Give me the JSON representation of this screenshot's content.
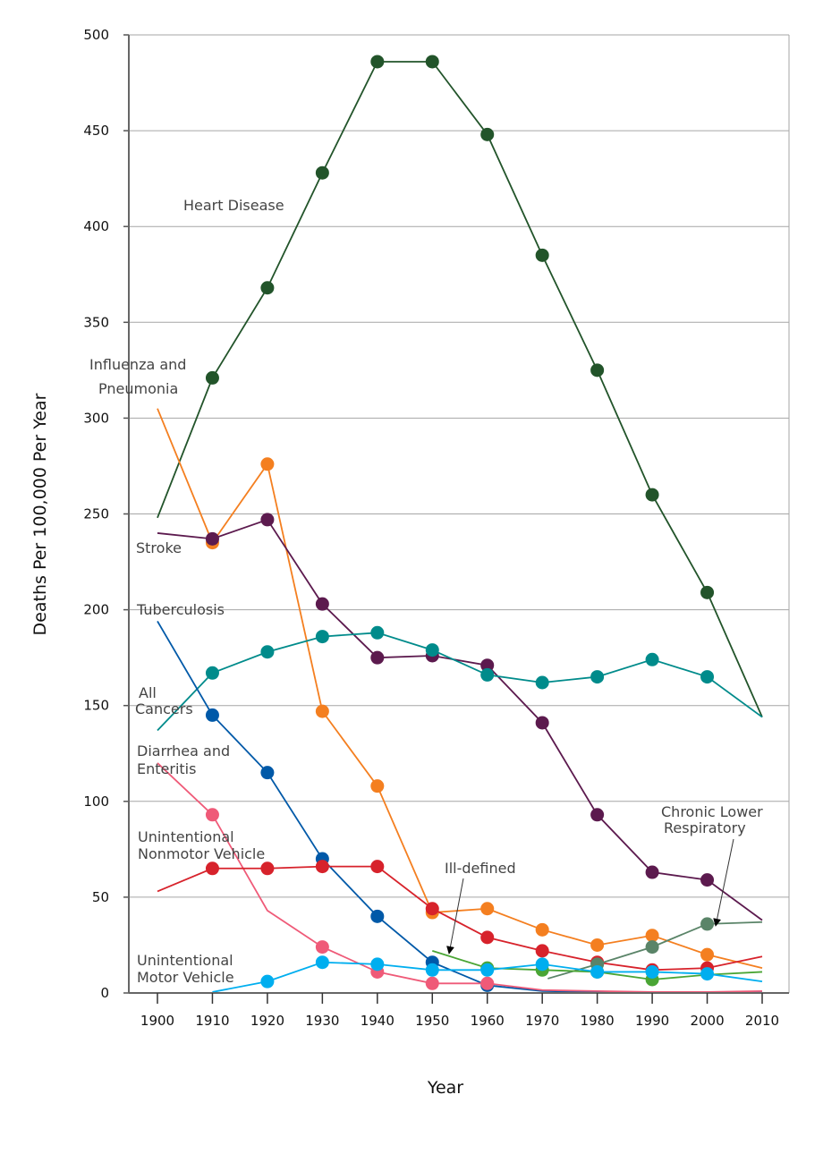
{
  "chart_data": {
    "type": "line",
    "title": "",
    "xlabel": "Year",
    "ylabel": "Deaths Per 100,000 Per Year",
    "xlim": [
      1900,
      2010
    ],
    "ylim": [
      0,
      500
    ],
    "x_ticks": [
      1900,
      1910,
      1920,
      1930,
      1940,
      1950,
      1960,
      1970,
      1980,
      1990,
      2000,
      2010
    ],
    "y_ticks": [
      0,
      50,
      100,
      150,
      200,
      250,
      300,
      350,
      400,
      450,
      500
    ],
    "grid": "horizontal",
    "legend": "none (inline labels)",
    "series": [
      {
        "name": "Heart Disease",
        "color": "#22542a",
        "x": [
          1900,
          1910,
          1920,
          1930,
          1940,
          1950,
          1960,
          1970,
          1980,
          1990,
          2000,
          2010
        ],
        "values": [
          248,
          321,
          368,
          428,
          486,
          486,
          448,
          385,
          325,
          260,
          209,
          144
        ],
        "markers": [
          false,
          true,
          true,
          true,
          true,
          true,
          true,
          true,
          true,
          true,
          true,
          false
        ]
      },
      {
        "name": "Influenza and Pneumonia",
        "color": "#f47f20",
        "x": [
          1900,
          1910,
          1920,
          1930,
          1940,
          1950,
          1960,
          1970,
          1980,
          1990,
          2000,
          2010
        ],
        "values": [
          305,
          235,
          276,
          147,
          108,
          42,
          44,
          33,
          25,
          30,
          20,
          13
        ],
        "markers": [
          false,
          true,
          true,
          true,
          true,
          true,
          true,
          true,
          true,
          true,
          true,
          false
        ]
      },
      {
        "name": "Stroke",
        "color": "#5c1a4e",
        "x": [
          1900,
          1910,
          1920,
          1930,
          1940,
          1950,
          1960,
          1970,
          1980,
          1990,
          2000,
          2010
        ],
        "values": [
          240,
          237,
          247,
          203,
          175,
          176,
          171,
          141,
          93,
          63,
          59,
          38
        ],
        "markers": [
          false,
          true,
          true,
          true,
          true,
          true,
          true,
          true,
          true,
          true,
          true,
          false
        ]
      },
      {
        "name": "All Cancers",
        "color": "#008b8b",
        "x": [
          1900,
          1910,
          1920,
          1930,
          1940,
          1950,
          1960,
          1970,
          1980,
          1990,
          2000,
          2010
        ],
        "values": [
          137,
          167,
          178,
          186,
          188,
          179,
          166,
          162,
          165,
          174,
          165,
          144
        ],
        "markers": [
          false,
          true,
          true,
          true,
          true,
          true,
          true,
          true,
          true,
          true,
          true,
          false
        ]
      },
      {
        "name": "Tuberculosis",
        "color": "#0059a8",
        "x": [
          1900,
          1910,
          1920,
          1930,
          1940,
          1950,
          1960,
          1970,
          1980,
          1990,
          2000,
          2010
        ],
        "values": [
          194,
          145,
          115,
          70,
          40,
          16,
          4,
          1,
          0.5,
          0.3,
          0.2,
          0.2
        ],
        "markers": [
          false,
          true,
          true,
          true,
          true,
          true,
          true,
          false,
          false,
          false,
          false,
          false
        ]
      },
      {
        "name": "Diarrhea and Enteritis",
        "color": "#ef5a78",
        "x": [
          1900,
          1910,
          1920,
          1930,
          1940,
          1950,
          1960,
          1970,
          1980,
          1990,
          2000,
          2010
        ],
        "values": [
          120,
          93,
          43,
          24,
          11,
          5,
          5,
          1.5,
          1,
          0.5,
          0.5,
          1
        ],
        "markers": [
          false,
          true,
          false,
          true,
          true,
          true,
          true,
          false,
          false,
          false,
          false,
          false
        ]
      },
      {
        "name": "Unintentional Nonmotor Vehicle",
        "color": "#d7222b",
        "x": [
          1900,
          1910,
          1920,
          1930,
          1940,
          1950,
          1960,
          1970,
          1980,
          1990,
          2000,
          2010
        ],
        "values": [
          53,
          65,
          65,
          66,
          66,
          44,
          29,
          22,
          16,
          12,
          13,
          19
        ],
        "markers": [
          false,
          true,
          true,
          true,
          true,
          true,
          true,
          true,
          true,
          true,
          true,
          false
        ]
      },
      {
        "name": "Chronic Lower Respiratory",
        "color": "#5a8468",
        "x": [
          1971,
          1980,
          1990,
          2000,
          2010
        ],
        "values": [
          7.5,
          15,
          24,
          36,
          37
        ],
        "markers": [
          false,
          true,
          true,
          true,
          false
        ]
      },
      {
        "name": "Ill-defined",
        "color": "#4aa535",
        "x": [
          1950,
          1960,
          1970,
          1980,
          1990,
          2000,
          2010
        ],
        "values": [
          22,
          13,
          12,
          11,
          7,
          9.5,
          11
        ],
        "markers": [
          false,
          true,
          true,
          true,
          true,
          false,
          false
        ]
      },
      {
        "name": "Unintentional Motor Vehicle",
        "color": "#00aeef",
        "x": [
          1910,
          1920,
          1930,
          1940,
          1950,
          1960,
          1970,
          1980,
          1990,
          2000,
          2010
        ],
        "values": [
          0.5,
          6,
          16,
          15,
          12,
          12,
          15,
          11,
          11,
          10,
          6
        ],
        "markers": [
          false,
          true,
          true,
          true,
          true,
          true,
          true,
          true,
          true,
          true,
          false
        ]
      }
    ],
    "annotations": {
      "heart": "Heart Disease",
      "flu1": "Influenza and",
      "flu2": "Pneumonia",
      "stroke": "Stroke",
      "tb": "Tuberculosis",
      "can1": "All",
      "can2": "Cancers",
      "dia1": "Diarrhea and",
      "dia2": "Enteritis",
      "nmv1": "Unintentional",
      "nmv2": "Nonmotor Vehicle",
      "mv1": "Unintentional",
      "mv2": "Motor Vehicle",
      "ill": "Ill-defined",
      "clr1": "Chronic Lower",
      "clr2": "Respiratory"
    }
  }
}
